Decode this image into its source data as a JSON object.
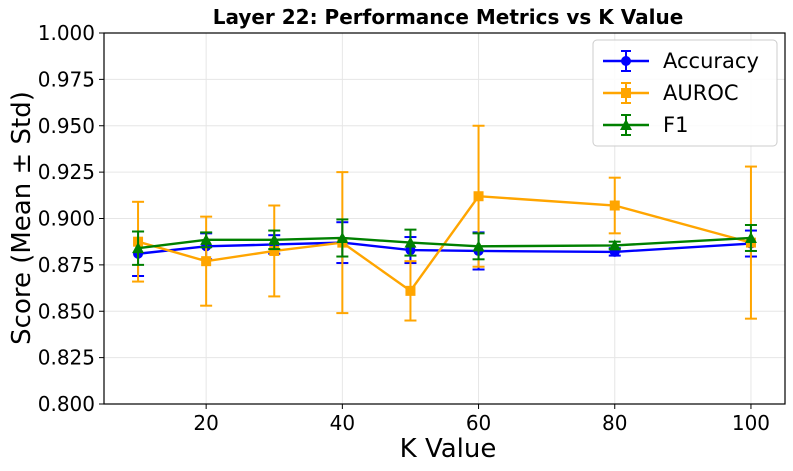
{
  "chart_data": {
    "type": "line",
    "title": "Layer 22: Performance Metrics vs K Value",
    "xlabel": "K Value",
    "ylabel": "Score (Mean ± Std)",
    "xlim": [
      5,
      105
    ],
    "ylim": [
      0.8,
      1.0
    ],
    "xticks": [
      20,
      40,
      60,
      80,
      100
    ],
    "yticks": [
      "0.800",
      "0.825",
      "0.850",
      "0.875",
      "0.900",
      "0.925",
      "0.950",
      "0.975",
      "1.000"
    ],
    "grid": true,
    "legend_position": "top-right",
    "x": [
      10,
      20,
      30,
      40,
      50,
      60,
      80,
      100
    ],
    "series": [
      {
        "name": "Accuracy",
        "color": "#0000ff",
        "marker": "circle",
        "values": [
          0.881,
          0.885,
          0.886,
          0.887,
          0.883,
          0.8825,
          0.882,
          0.8865
        ],
        "errors": [
          0.012,
          0.007,
          0.005,
          0.011,
          0.007,
          0.01,
          0.002,
          0.007
        ]
      },
      {
        "name": "AUROC",
        "color": "#ffa500",
        "marker": "square",
        "values": [
          0.8875,
          0.877,
          0.8825,
          0.887,
          0.861,
          0.912,
          0.907,
          0.887
        ],
        "errors": [
          0.0215,
          0.024,
          0.0245,
          0.038,
          0.016,
          0.038,
          0.015,
          0.041
        ]
      },
      {
        "name": "F1",
        "color": "#008000",
        "marker": "triangle",
        "values": [
          0.884,
          0.8885,
          0.8885,
          0.8895,
          0.887,
          0.885,
          0.8855,
          0.8895
        ],
        "errors": [
          0.009,
          0.004,
          0.005,
          0.01,
          0.007,
          0.007,
          0.002,
          0.007
        ]
      }
    ]
  }
}
